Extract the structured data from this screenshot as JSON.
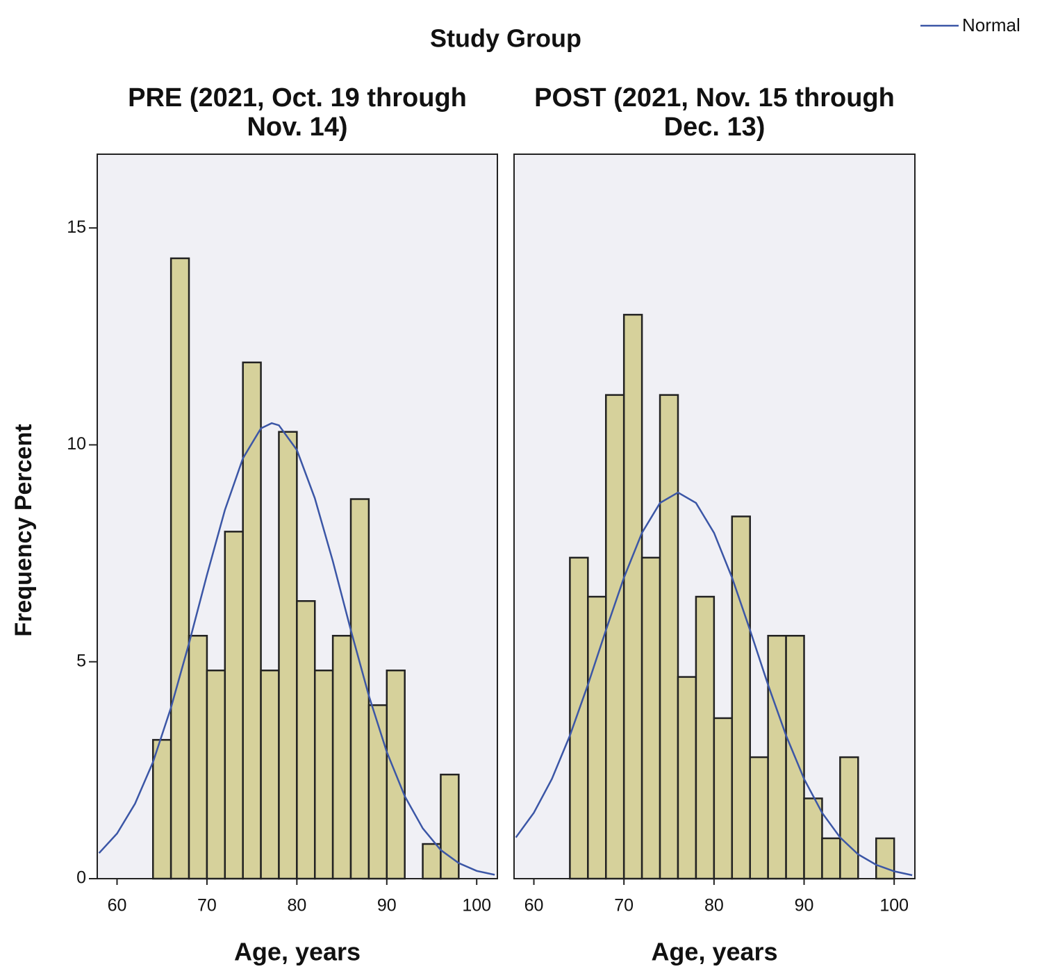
{
  "title": "Study Group",
  "chart_data": [
    {
      "type": "histogram",
      "title": [
        "PRE (2021, Oct. 19 through",
        "Nov. 14)"
      ],
      "x_label": "Age, years",
      "y_label": "Frequency Percent",
      "bins": [
        64,
        66,
        68,
        70,
        72,
        74,
        76,
        78,
        80,
        82,
        84,
        86,
        88,
        90,
        92,
        94,
        96,
        98
      ],
      "values": [
        3.2,
        14.3,
        5.6,
        4.8,
        8.0,
        11.9,
        4.8,
        10.3,
        6.4,
        4.8,
        5.6,
        8.75,
        4.0,
        4.8,
        0,
        0.8,
        2.4
      ],
      "color": "#d6d19b",
      "xlim": [
        57.8,
        102.3
      ],
      "xticks": [
        60,
        70,
        80,
        90,
        100
      ],
      "ylim": [
        0,
        16.7
      ],
      "yticks": [
        0,
        5,
        10,
        15
      ],
      "series": [
        {
          "name": "Normal",
          "color": "#3b56a6",
          "x": [
            58,
            60,
            62,
            64,
            66,
            68,
            70,
            72,
            74,
            76,
            77.2,
            78,
            80,
            82,
            84,
            86,
            88,
            90,
            92,
            94,
            96,
            98,
            100,
            102
          ],
          "values": [
            0.59,
            1.04,
            1.73,
            2.69,
            3.94,
            5.42,
            7.0,
            8.5,
            9.69,
            10.38,
            10.5,
            10.45,
            9.88,
            8.77,
            7.32,
            5.73,
            4.22,
            2.92,
            1.9,
            1.16,
            0.66,
            0.36,
            0.18,
            0.09
          ]
        }
      ]
    },
    {
      "type": "histogram",
      "title": [
        "POST (2021, Nov. 15 through",
        "Dec. 13)"
      ],
      "x_label": "Age, years",
      "bins": [
        64,
        66,
        68,
        70,
        72,
        74,
        76,
        78,
        80,
        82,
        84,
        86,
        88,
        90,
        92,
        94,
        96,
        98,
        100
      ],
      "values": [
        7.4,
        6.5,
        11.15,
        13.0,
        7.4,
        11.15,
        4.65,
        6.5,
        3.7,
        8.35,
        2.8,
        5.6,
        5.6,
        1.85,
        0.93,
        2.8,
        0,
        0.93
      ],
      "color": "#d6d19b",
      "xlim": [
        57.8,
        102.3
      ],
      "xticks": [
        60,
        70,
        80,
        90,
        100
      ],
      "ylim": [
        0,
        16.7
      ],
      "series": [
        {
          "color": "#3b56a6",
          "x": [
            58,
            60,
            62,
            64,
            66,
            68,
            70,
            72,
            74,
            76,
            78,
            80,
            82,
            84,
            86,
            88,
            90,
            92,
            94,
            96,
            98,
            100,
            102
          ],
          "values": [
            0.95,
            1.52,
            2.3,
            3.3,
            4.47,
            5.73,
            6.94,
            7.97,
            8.66,
            8.9,
            8.66,
            7.97,
            6.94,
            5.73,
            4.47,
            3.3,
            2.3,
            1.52,
            0.95,
            0.56,
            0.32,
            0.17,
            0.08
          ]
        }
      ]
    }
  ]
}
